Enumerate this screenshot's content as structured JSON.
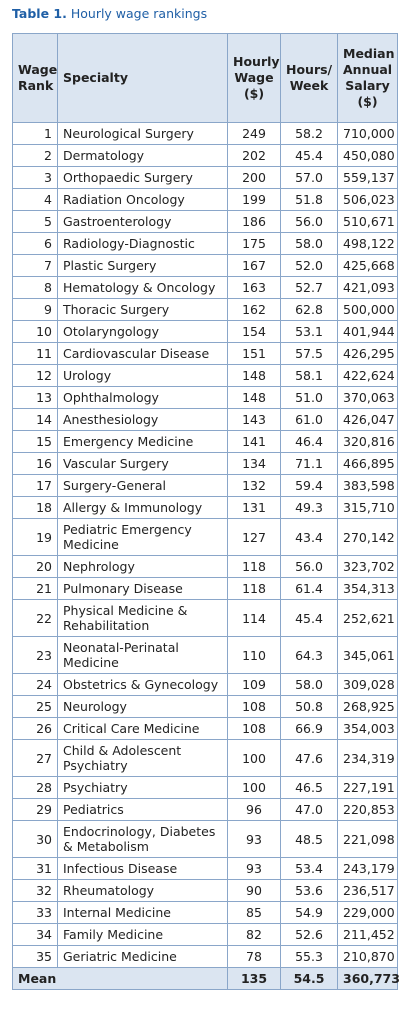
{
  "title": {
    "label": "Table 1.",
    "text": "Hourly wage rankings"
  },
  "table": {
    "header": [
      "Wage Rank",
      "Specialty",
      "Hourly Wage ($)",
      "Hours/ Week",
      "Median Annual Salary ($)"
    ],
    "rows": [
      [
        "1",
        "Neurological Surgery",
        "249",
        "58.2",
        "710,000"
      ],
      [
        "2",
        "Dermatology",
        "202",
        "45.4",
        "450,080"
      ],
      [
        "3",
        "Orthopaedic Surgery",
        "200",
        "57.0",
        "559,137"
      ],
      [
        "4",
        "Radiation Oncology",
        "199",
        "51.8",
        "506,023"
      ],
      [
        "5",
        "Gastroenterology",
        "186",
        "56.0",
        "510,671"
      ],
      [
        "6",
        "Radiology-Diagnostic",
        "175",
        "58.0",
        "498,122"
      ],
      [
        "7",
        "Plastic Surgery",
        "167",
        "52.0",
        "425,668"
      ],
      [
        "8",
        "Hematology & Oncology",
        "163",
        "52.7",
        "421,093"
      ],
      [
        "9",
        "Thoracic Surgery",
        "162",
        "62.8",
        "500,000"
      ],
      [
        "10",
        "Otolaryngology",
        "154",
        "53.1",
        "401,944"
      ],
      [
        "11",
        "Cardiovascular Disease",
        "151",
        "57.5",
        "426,295"
      ],
      [
        "12",
        "Urology",
        "148",
        "58.1",
        "422,624"
      ],
      [
        "13",
        "Ophthalmology",
        "148",
        "51.0",
        "370,063"
      ],
      [
        "14",
        "Anesthesiology",
        "143",
        "61.0",
        "426,047"
      ],
      [
        "15",
        "Emergency Medicine",
        "141",
        "46.4",
        "320,816"
      ],
      [
        "16",
        "Vascular Surgery",
        "134",
        "71.1",
        "466,895"
      ],
      [
        "17",
        "Surgery-General",
        "132",
        "59.4",
        "383,598"
      ],
      [
        "18",
        "Allergy & Immunology",
        "131",
        "49.3",
        "315,710"
      ],
      [
        "19",
        "Pediatric Emergency Medicine",
        "127",
        "43.4",
        "270,142"
      ],
      [
        "20",
        "Nephrology",
        "118",
        "56.0",
        "323,702"
      ],
      [
        "21",
        "Pulmonary Disease",
        "118",
        "61.4",
        "354,313"
      ],
      [
        "22",
        "Physical Medicine & Rehabilitation",
        "114",
        "45.4",
        "252,621"
      ],
      [
        "23",
        "Neonatal-Perinatal Medicine",
        "110",
        "64.3",
        "345,061"
      ],
      [
        "24",
        "Obstetrics & Gynecology",
        "109",
        "58.0",
        "309,028"
      ],
      [
        "25",
        "Neurology",
        "108",
        "50.8",
        "268,925"
      ],
      [
        "26",
        "Critical Care Medicine",
        "108",
        "66.9",
        "354,003"
      ],
      [
        "27",
        "Child & Adolescent Psychiatry",
        "100",
        "47.6",
        "234,319"
      ],
      [
        "28",
        "Psychiatry",
        "100",
        "46.5",
        "227,191"
      ],
      [
        "29",
        "Pediatrics",
        "96",
        "47.0",
        "220,853"
      ],
      [
        "30",
        "Endocrinology, Diabetes & Metabolism",
        "93",
        "48.5",
        "221,098"
      ],
      [
        "31",
        "Infectious Disease",
        "93",
        "53.4",
        "243,179"
      ],
      [
        "32",
        "Rheumatology",
        "90",
        "53.6",
        "236,517"
      ],
      [
        "33",
        "Internal Medicine",
        "85",
        "54.9",
        "229,000"
      ],
      [
        "34",
        "Family Medicine",
        "82",
        "52.6",
        "211,452"
      ],
      [
        "35",
        "Geriatric Medicine",
        "78",
        "55.3",
        "210,870"
      ]
    ],
    "footer": [
      "Mean",
      "135",
      "54.5",
      "360,773"
    ]
  }
}
